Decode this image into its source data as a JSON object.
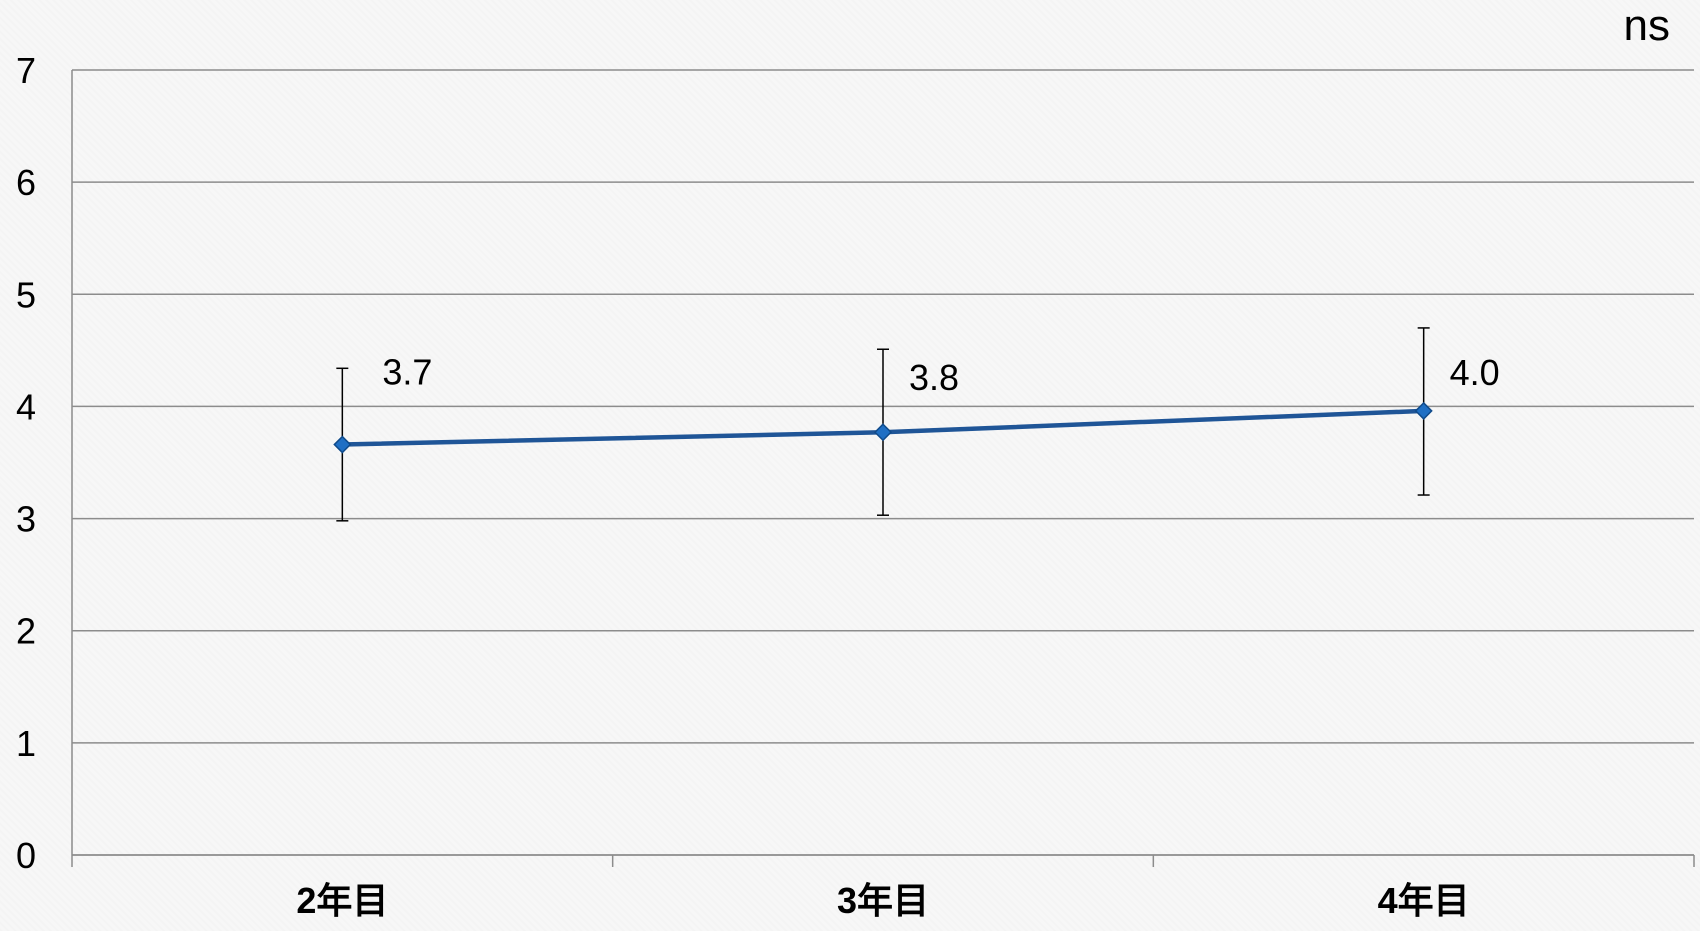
{
  "chart_data": {
    "type": "line",
    "categories": [
      "2年目",
      "3年目",
      "4年目"
    ],
    "series": [
      {
        "values": [
          3.66,
          3.77,
          3.96
        ],
        "error_low": [
          2.98,
          3.03,
          3.21
        ],
        "error_high": [
          4.34,
          4.51,
          4.7
        ],
        "data_labels": [
          "3.7",
          "3.8",
          "4.0"
        ]
      }
    ],
    "ylim": [
      0,
      7
    ],
    "y_ticks": [
      0,
      1,
      2,
      3,
      4,
      5,
      6,
      7
    ],
    "grid": true,
    "annotation": "ns",
    "colors": {
      "line": "#1f5597",
      "marker": "#1f6fc4",
      "error_bar": "#000000",
      "grid": "#8c8c8c",
      "axis": "#8c8c8c"
    }
  }
}
